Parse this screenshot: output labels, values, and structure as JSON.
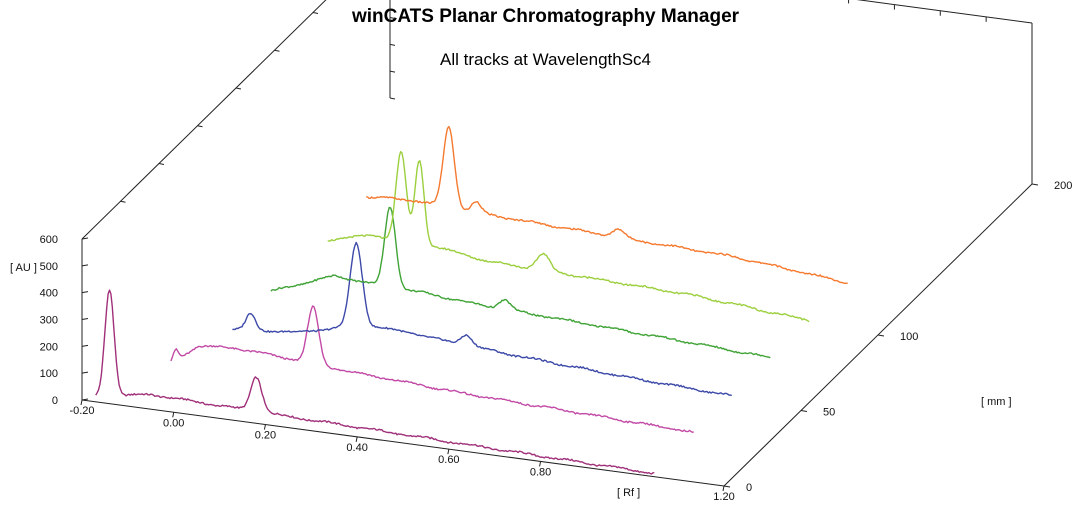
{
  "chart_data": {
    "type": "line",
    "subtype": "3d-waterfall",
    "title": "winCATS Planar Chromatography Manager",
    "subtitle": "All tracks at WavelengthSc4",
    "xlabel": "[ Rf ]",
    "ylabel": "[ AU ]",
    "zlabel": "[ mm ]",
    "xlim": [
      -0.2,
      1.2
    ],
    "ylim": [
      0,
      600
    ],
    "zlim": [
      0,
      200
    ],
    "x_ticks": [
      "-0.20",
      "0.00",
      "0.20",
      "0.40",
      "0.60",
      "0.80",
      "1.20"
    ],
    "y_ticks": [
      "0",
      "100",
      "200",
      "300",
      "400",
      "500",
      "600"
    ],
    "z_ticks": [
      "0",
      "50",
      "100",
      "200"
    ],
    "grid": false,
    "series": [
      {
        "z": 0,
        "color": "#a0307a",
        "baseline": [
          [
            -0.17,
            20
          ],
          [
            -0.05,
            55
          ],
          [
            0.1,
            48
          ],
          [
            0.3,
            40
          ],
          [
            0.55,
            30
          ],
          [
            0.8,
            20
          ],
          [
            1.05,
            12
          ]
        ],
        "peaks": [
          [
            -0.14,
            400,
            0.01
          ],
          [
            0.18,
            130,
            0.012
          ]
        ]
      },
      {
        "z": 25,
        "color": "#c24aa6",
        "baseline": [
          [
            -0.09,
            20
          ],
          [
            -0.03,
            100
          ],
          [
            0.05,
            110
          ],
          [
            0.15,
            100
          ],
          [
            0.3,
            80
          ],
          [
            0.55,
            55
          ],
          [
            0.8,
            40
          ],
          [
            1.05,
            25
          ]
        ],
        "peaks": [
          [
            -0.08,
            40,
            0.006
          ],
          [
            0.22,
            210,
            0.012
          ]
        ]
      },
      {
        "z": 50,
        "color": "#3c49a8",
        "baseline": [
          [
            -0.04,
            20
          ],
          [
            0.1,
            40
          ],
          [
            0.25,
            100
          ],
          [
            0.35,
            95
          ],
          [
            0.4,
            85
          ],
          [
            0.6,
            60
          ],
          [
            0.85,
            35
          ],
          [
            1.05,
            20
          ]
        ],
        "peaks": [
          [
            0.0,
            60,
            0.01
          ],
          [
            0.23,
            310,
            0.013
          ],
          [
            0.47,
            40,
            0.012
          ]
        ]
      },
      {
        "z": 75,
        "color": "#3fa336",
        "baseline": [
          [
            -0.04,
            20
          ],
          [
            0.1,
            110
          ],
          [
            0.2,
            95
          ],
          [
            0.3,
            90
          ],
          [
            0.4,
            75
          ],
          [
            0.6,
            60
          ],
          [
            0.85,
            40
          ],
          [
            1.05,
            22
          ]
        ],
        "peaks": [
          [
            0.22,
            300,
            0.012
          ],
          [
            0.47,
            35,
            0.012
          ]
        ]
      },
      {
        "z": 100,
        "color": "#9ccf3d",
        "baseline": [
          [
            0.0,
            80
          ],
          [
            0.1,
            120
          ],
          [
            0.25,
            105
          ],
          [
            0.35,
            80
          ],
          [
            0.55,
            70
          ],
          [
            0.8,
            55
          ],
          [
            1.05,
            20
          ]
        ],
        "peaks": [
          [
            0.16,
            330,
            0.011
          ],
          [
            0.2,
            310,
            0.01
          ],
          [
            0.47,
            60,
            0.014
          ]
        ]
      },
      {
        "z": 125,
        "color": "#f5792e",
        "baseline": [
          [
            0.0,
            100
          ],
          [
            0.1,
            110
          ],
          [
            0.25,
            95
          ],
          [
            0.4,
            85
          ],
          [
            0.55,
            75
          ],
          [
            0.8,
            60
          ],
          [
            1.05,
            20
          ]
        ],
        "peaks": [
          [
            0.18,
            300,
            0.012
          ],
          [
            0.24,
            40,
            0.01
          ],
          [
            0.55,
            30,
            0.012
          ]
        ]
      }
    ]
  }
}
